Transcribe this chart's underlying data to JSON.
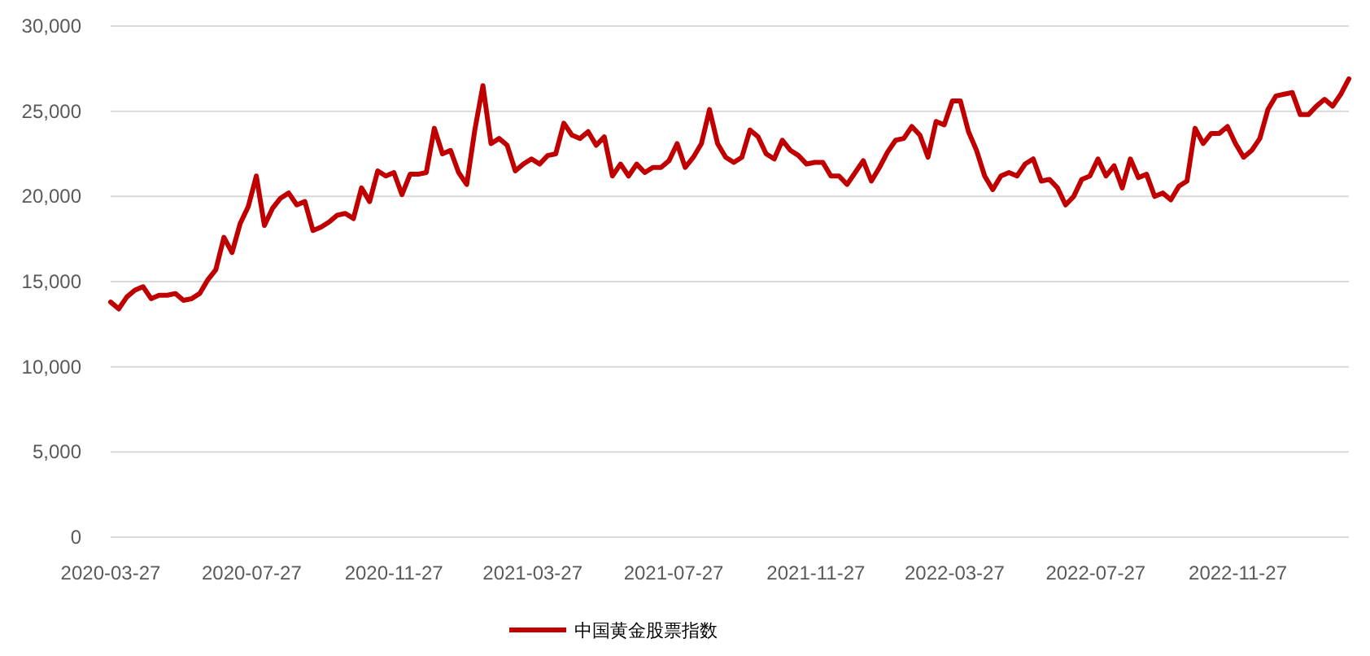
{
  "chart_data": {
    "type": "line",
    "x": [
      "2020-03-27",
      "2020-04-03",
      "2020-04-10",
      "2020-04-17",
      "2020-04-24",
      "2020-05-01",
      "2020-05-08",
      "2020-05-15",
      "2020-05-22",
      "2020-05-29",
      "2020-06-05",
      "2020-06-12",
      "2020-06-19",
      "2020-06-26",
      "2020-07-03",
      "2020-07-10",
      "2020-07-17",
      "2020-07-24",
      "2020-07-31",
      "2020-08-07",
      "2020-08-14",
      "2020-08-21",
      "2020-08-28",
      "2020-09-04",
      "2020-09-11",
      "2020-09-18",
      "2020-09-25",
      "2020-10-02",
      "2020-10-09",
      "2020-10-16",
      "2020-10-23",
      "2020-10-30",
      "2020-11-06",
      "2020-11-13",
      "2020-11-20",
      "2020-11-27",
      "2020-12-04",
      "2020-12-11",
      "2020-12-18",
      "2020-12-25",
      "2021-01-01",
      "2021-01-08",
      "2021-01-15",
      "2021-01-22",
      "2021-01-29",
      "2021-02-05",
      "2021-02-12",
      "2021-02-19",
      "2021-02-26",
      "2021-03-05",
      "2021-03-12",
      "2021-03-19",
      "2021-03-26",
      "2021-04-02",
      "2021-04-09",
      "2021-04-16",
      "2021-04-23",
      "2021-04-30",
      "2021-05-07",
      "2021-05-14",
      "2021-05-21",
      "2021-05-28",
      "2021-06-04",
      "2021-06-11",
      "2021-06-18",
      "2021-06-25",
      "2021-07-02",
      "2021-07-09",
      "2021-07-16",
      "2021-07-23",
      "2021-07-30",
      "2021-08-06",
      "2021-08-13",
      "2021-08-20",
      "2021-08-27",
      "2021-09-03",
      "2021-09-10",
      "2021-09-17",
      "2021-09-24",
      "2021-10-01",
      "2021-10-08",
      "2021-10-15",
      "2021-10-22",
      "2021-10-29",
      "2021-11-05",
      "2021-11-12",
      "2021-11-19",
      "2021-11-26",
      "2021-12-03",
      "2021-12-10",
      "2021-12-17",
      "2021-12-24",
      "2021-12-31",
      "2022-01-07",
      "2022-01-14",
      "2022-01-21",
      "2022-01-28",
      "2022-02-04",
      "2022-02-11",
      "2022-02-18",
      "2022-02-25",
      "2022-03-04",
      "2022-03-11",
      "2022-03-18",
      "2022-03-25",
      "2022-04-01",
      "2022-04-08",
      "2022-04-15",
      "2022-04-22",
      "2022-04-29",
      "2022-05-06",
      "2022-05-13",
      "2022-05-20",
      "2022-05-27",
      "2022-06-03",
      "2022-06-10",
      "2022-06-17",
      "2022-06-24",
      "2022-07-01",
      "2022-07-08",
      "2022-07-15",
      "2022-07-22",
      "2022-07-29",
      "2022-08-05",
      "2022-08-12",
      "2022-08-19",
      "2022-08-26",
      "2022-09-02",
      "2022-09-09",
      "2022-09-16",
      "2022-09-23",
      "2022-09-30",
      "2022-10-07",
      "2022-10-14",
      "2022-10-21",
      "2022-10-28",
      "2022-11-04",
      "2022-11-11",
      "2022-11-18",
      "2022-11-25",
      "2022-12-02",
      "2022-12-09",
      "2022-12-16",
      "2022-12-23",
      "2022-12-30",
      "2023-01-06",
      "2023-01-13",
      "2023-01-20",
      "2023-01-27",
      "2023-02-03",
      "2023-02-10",
      "2023-02-17",
      "2023-02-24",
      "2023-03-03"
    ],
    "series": [
      {
        "name": "中国黄金股票指数",
        "color": "#c00000",
        "values": [
          13800,
          13400,
          14100,
          14500,
          14700,
          14000,
          14200,
          14200,
          14300,
          13900,
          14000,
          14300,
          15100,
          15700,
          17600,
          16700,
          18400,
          19400,
          21200,
          18300,
          19300,
          19900,
          20200,
          19500,
          19700,
          18000,
          18200,
          18500,
          18900,
          19000,
          18700,
          20500,
          19700,
          21500,
          21200,
          21400,
          20100,
          21300,
          21300,
          21400,
          24000,
          22500,
          22700,
          21400,
          20700,
          23900,
          26500,
          23100,
          23400,
          23000,
          21500,
          21900,
          22200,
          21900,
          22400,
          22500,
          24300,
          23600,
          23400,
          23800,
          23000,
          23500,
          21200,
          21900,
          21200,
          21900,
          21400,
          21700,
          21700,
          22100,
          23100,
          21700,
          22300,
          23100,
          25100,
          23100,
          22300,
          22000,
          22300,
          23900,
          23500,
          22500,
          22200,
          23300,
          22700,
          22400,
          21900,
          22000,
          22000,
          21200,
          21200,
          20700,
          21400,
          22100,
          20900,
          21700,
          22600,
          23300,
          23400,
          24100,
          23600,
          22300,
          24400,
          24200,
          25600,
          25600,
          23800,
          22700,
          21200,
          20400,
          21200,
          21400,
          21200,
          21900,
          22200,
          20900,
          21000,
          20500,
          19500,
          20000,
          21000,
          21200,
          22200,
          21200,
          21800,
          20500,
          22200,
          21100,
          21300,
          20000,
          20200,
          19800,
          20600,
          20900,
          24000,
          23100,
          23700,
          23700,
          24100,
          23100,
          22300,
          22700,
          23400,
          25100,
          25900,
          26000,
          26100,
          24800,
          24800,
          25300,
          25700,
          25300,
          26000,
          26900
        ]
      }
    ],
    "xlim": [
      "2020-03-27",
      "2023-03-03"
    ],
    "xticks": [
      {
        "value": "2020-03-27",
        "label": "2020-03-27"
      },
      {
        "value": "2020-07-27",
        "label": "2020-07-27"
      },
      {
        "value": "2020-11-27",
        "label": "2020-11-27"
      },
      {
        "value": "2021-03-27",
        "label": "2021-03-27"
      },
      {
        "value": "2021-07-27",
        "label": "2021-07-27"
      },
      {
        "value": "2021-11-27",
        "label": "2021-11-27"
      },
      {
        "value": "2022-03-27",
        "label": "2022-03-27"
      },
      {
        "value": "2022-07-27",
        "label": "2022-07-27"
      },
      {
        "value": "2022-11-27",
        "label": "2022-11-27"
      }
    ],
    "ylim": [
      0,
      30000
    ],
    "yticks": [
      0,
      {
        "value": 5000,
        "label": "5,000"
      },
      {
        "value": 10000,
        "label": "10,000"
      },
      {
        "value": 15000,
        "label": "15,000"
      },
      {
        "value": 20000,
        "label": "20,000"
      },
      {
        "value": 25000,
        "label": "25,000"
      },
      {
        "value": 30000,
        "label": "30,000"
      }
    ],
    "grid": "y",
    "legend": "bottom"
  }
}
